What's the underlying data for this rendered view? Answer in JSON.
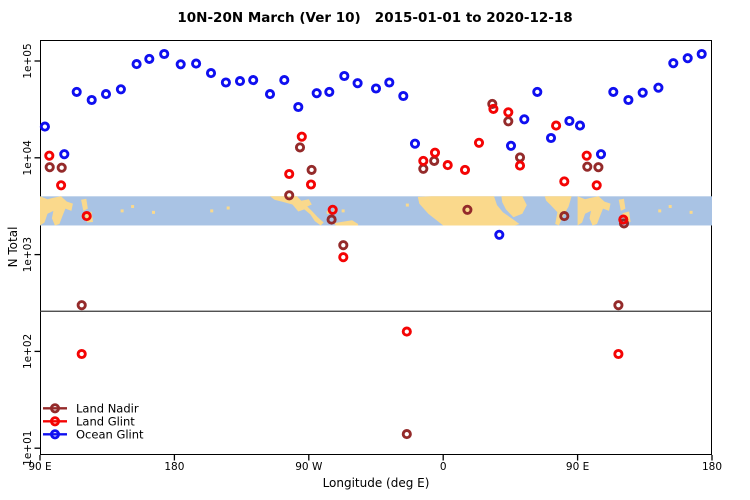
{
  "title": "10N-20N March (Ver 10)   2015-01-01 to 2020-12-18",
  "chart_data": {
    "type": "scatter",
    "title": "10N-20N March (Ver 10)   2015-01-01 to 2020-12-18",
    "xlabel": "Longitude (deg E)",
    "ylabel": "N Total",
    "x_axis": {
      "label": "Longitude (deg E)",
      "range_axis_deg": [
        90,
        540
      ],
      "tick_positions_deg": [
        90,
        180,
        270,
        360,
        450,
        540
      ],
      "tick_labels": [
        "90 E",
        "180",
        "90 W",
        "0",
        "90 E",
        "180"
      ]
    },
    "y_axis": {
      "label": "N Total",
      "scale": "log10",
      "tick_values": [
        10,
        100,
        1000,
        10000,
        100000
      ],
      "tick_labels": [
        "1e+01",
        "1e+02",
        "1e+03",
        "1e+04",
        "1e+05"
      ]
    },
    "reference_line_n": 260,
    "map_band": {
      "n_top": 4000,
      "n_bottom": 2000,
      "ocean_color": "#A9C3E4",
      "land_color": "#FAD98C",
      "land_polygons": [
        [
          [
            90,
            0
          ],
          [
            95,
            0.1
          ],
          [
            99,
            0.05
          ],
          [
            104,
            0
          ],
          [
            108,
            0.18
          ],
          [
            112,
            0.25
          ],
          [
            111,
            0.5
          ],
          [
            107,
            0.42
          ],
          [
            105,
            0.68
          ],
          [
            103,
            0.95
          ],
          [
            100,
            1
          ],
          [
            98,
            0.75
          ],
          [
            99,
            0.5
          ],
          [
            95,
            0.6
          ],
          [
            93,
            0.9
          ],
          [
            90,
            1
          ]
        ],
        [
          [
            117.5,
            0.12
          ],
          [
            121,
            0.08
          ],
          [
            122,
            0.42
          ],
          [
            119,
            0.5
          ]
        ],
        [
          [
            120,
            0.58
          ],
          [
            124.5,
            0.52
          ],
          [
            125.5,
            0.88
          ],
          [
            121.5,
            0.9
          ]
        ],
        [
          [
            244,
            0
          ],
          [
            262,
            0
          ],
          [
            265,
            0.15
          ],
          [
            270,
            0.1
          ],
          [
            272,
            0.28
          ],
          [
            269,
            0.35
          ],
          [
            272,
            0.5
          ],
          [
            276,
            0.72
          ],
          [
            280,
            0.9
          ],
          [
            278,
            1
          ],
          [
            274,
            0.85
          ],
          [
            271,
            0.62
          ],
          [
            267,
            0.45
          ],
          [
            263,
            0.52
          ],
          [
            259,
            0.28
          ],
          [
            252,
            0.18
          ],
          [
            247,
            0.12
          ]
        ],
        [
          [
            287,
            0.92
          ],
          [
            299,
            0.82
          ],
          [
            303,
            0.95
          ],
          [
            303,
            1
          ],
          [
            288,
            1
          ]
        ],
        [
          [
            343,
            0.02
          ],
          [
            352,
            0
          ],
          [
            394,
            0
          ],
          [
            396,
            0.3
          ],
          [
            400,
            0.55
          ],
          [
            407,
            0.8
          ],
          [
            411,
            0.95
          ],
          [
            408,
            1
          ],
          [
            396,
            1
          ],
          [
            360,
            1
          ],
          [
            350,
            0.6
          ],
          [
            344,
            0.25
          ]
        ],
        [
          [
            399,
            0
          ],
          [
            413,
            0
          ],
          [
            416,
            0.3
          ],
          [
            413,
            0.6
          ],
          [
            407,
            0.72
          ],
          [
            402,
            0.45
          ],
          [
            399.5,
            0.2
          ]
        ],
        [
          [
            428,
            0
          ],
          [
            446,
            0
          ],
          [
            444,
            0.35
          ],
          [
            440,
            0.7
          ],
          [
            437.5,
            1
          ],
          [
            435,
            0.95
          ],
          [
            436.5,
            0.55
          ],
          [
            432,
            0.3
          ],
          [
            429,
            0.15
          ]
        ],
        [
          [
            450,
            0
          ],
          [
            455,
            0.1
          ],
          [
            459,
            0.05
          ],
          [
            464,
            0
          ],
          [
            468,
            0.18
          ],
          [
            472,
            0.25
          ],
          [
            471,
            0.5
          ],
          [
            467,
            0.42
          ],
          [
            465,
            0.68
          ],
          [
            463,
            0.95
          ],
          [
            460,
            1
          ],
          [
            458,
            0.75
          ],
          [
            459,
            0.5
          ],
          [
            455,
            0.6
          ],
          [
            453,
            0.9
          ],
          [
            450,
            1
          ]
        ],
        [
          [
            477.5,
            0.12
          ],
          [
            481,
            0.08
          ],
          [
            482,
            0.42
          ],
          [
            479,
            0.5
          ]
        ],
        [
          [
            480,
            0.58
          ],
          [
            484.5,
            0.52
          ],
          [
            485.5,
            0.88
          ],
          [
            481.5,
            0.9
          ]
        ]
      ],
      "land_specks": [
        [
          145,
          0.5
        ],
        [
          152,
          0.35
        ],
        [
          166,
          0.55
        ],
        [
          205,
          0.5
        ],
        [
          216,
          0.4
        ],
        [
          283,
          0.55
        ],
        [
          287.5,
          0.5
        ],
        [
          293,
          0.5
        ],
        [
          336,
          0.3
        ],
        [
          505,
          0.5
        ],
        [
          512,
          0.35
        ],
        [
          526,
          0.55
        ]
      ]
    },
    "series": [
      {
        "name": "Land Nadir",
        "color": "#942A2A",
        "points": [
          [
            96.5,
            8000
          ],
          [
            104.5,
            7900
          ],
          [
            117.9,
            300
          ],
          [
            256.9,
            4100
          ],
          [
            264.1,
            12800
          ],
          [
            271.9,
            7500
          ],
          [
            285.3,
            2300
          ],
          [
            293.1,
            1250
          ],
          [
            335.6,
            14
          ],
          [
            346.7,
            7700
          ],
          [
            354,
            9300
          ],
          [
            376.2,
            2900
          ],
          [
            392.9,
            36000
          ],
          [
            403.6,
            23800
          ],
          [
            411.4,
            10100
          ],
          [
            441.1,
            2500
          ],
          [
            456.5,
            8100
          ],
          [
            463.9,
            8000
          ],
          [
            477.3,
            300
          ],
          [
            481.1,
            2100
          ]
        ]
      },
      {
        "name": "Land Glint",
        "color": "#F40404",
        "points": [
          [
            96.2,
            10500
          ],
          [
            104.1,
            5200
          ],
          [
            121.3,
            2500
          ],
          [
            117.9,
            94
          ],
          [
            256.9,
            6800
          ],
          [
            265.3,
            16500
          ],
          [
            271.5,
            5300
          ],
          [
            286,
            2900
          ],
          [
            293.1,
            940
          ],
          [
            335.6,
            160
          ],
          [
            346.7,
            9300
          ],
          [
            354.5,
            11300
          ],
          [
            363,
            8400
          ],
          [
            374.6,
            7500
          ],
          [
            384,
            14300
          ],
          [
            393.6,
            32000
          ],
          [
            403.6,
            29500
          ],
          [
            411.4,
            8300
          ],
          [
            435.6,
            21500
          ],
          [
            441.1,
            5700
          ],
          [
            456.1,
            10500
          ],
          [
            462.8,
            5200
          ],
          [
            480.6,
            2300
          ],
          [
            477.3,
            94
          ]
        ]
      },
      {
        "name": "Ocean Glint",
        "color": "#0F0FF0",
        "points": [
          [
            93.3,
            21000
          ],
          [
            106.3,
            10900
          ],
          [
            114.6,
            48000
          ],
          [
            124.6,
            39500
          ],
          [
            134.2,
            45500
          ],
          [
            144.2,
            51000
          ],
          [
            154.7,
            93000
          ],
          [
            163.2,
            105000
          ],
          [
            173.2,
            118000
          ],
          [
            184.2,
            92500
          ],
          [
            194.5,
            94000
          ],
          [
            204.5,
            75000
          ],
          [
            214.5,
            60000
          ],
          [
            223.9,
            62000
          ],
          [
            232.8,
            63500
          ],
          [
            244,
            45500
          ],
          [
            253.6,
            63500
          ],
          [
            263,
            33500
          ],
          [
            275.3,
            46500
          ],
          [
            283.7,
            48000
          ],
          [
            293.8,
            70000
          ],
          [
            302.7,
            59000
          ],
          [
            315,
            52000
          ],
          [
            323.9,
            60000
          ],
          [
            333.3,
            43500
          ],
          [
            341.1,
            14000
          ],
          [
            397.6,
            1600
          ],
          [
            405.4,
            13300
          ],
          [
            414.3,
            25000
          ],
          [
            423,
            48000
          ],
          [
            432.2,
            16000
          ],
          [
            444.5,
            24000
          ],
          [
            451.6,
            21500
          ],
          [
            465.7,
            10900
          ],
          [
            473.9,
            48000
          ],
          [
            484,
            39500
          ],
          [
            493.6,
            47000
          ],
          [
            504.1,
            53000
          ],
          [
            514.1,
            95000
          ],
          [
            523.7,
            107000
          ],
          [
            533.1,
            118000
          ]
        ]
      }
    ],
    "legend": {
      "position": "bottom-left",
      "items": [
        "Land Nadir",
        "Land Glint",
        "Ocean Glint"
      ]
    }
  }
}
